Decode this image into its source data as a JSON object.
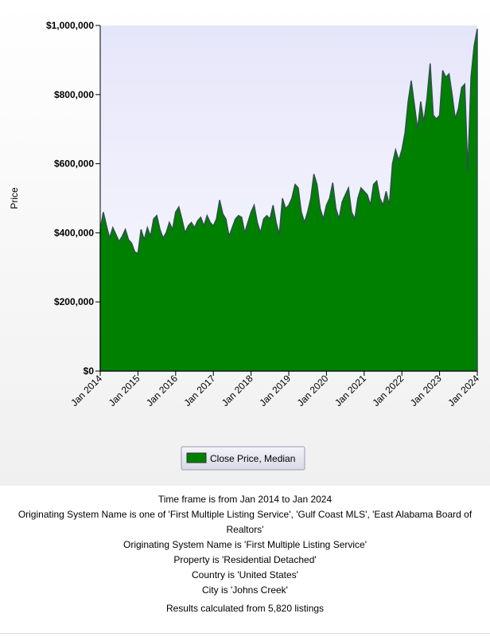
{
  "chart_data": {
    "type": "area",
    "y_label": "Price",
    "x": [
      "2014-01",
      "2014-02",
      "2014-03",
      "2014-04",
      "2014-05",
      "2014-06",
      "2014-07",
      "2014-08",
      "2014-09",
      "2014-10",
      "2014-11",
      "2014-12",
      "2015-01",
      "2015-02",
      "2015-03",
      "2015-04",
      "2015-05",
      "2015-06",
      "2015-07",
      "2015-08",
      "2015-09",
      "2015-10",
      "2015-11",
      "2015-12",
      "2016-01",
      "2016-02",
      "2016-03",
      "2016-04",
      "2016-05",
      "2016-06",
      "2016-07",
      "2016-08",
      "2016-09",
      "2016-10",
      "2016-11",
      "2016-12",
      "2017-01",
      "2017-02",
      "2017-03",
      "2017-04",
      "2017-05",
      "2017-06",
      "2017-07",
      "2017-08",
      "2017-09",
      "2017-10",
      "2017-11",
      "2017-12",
      "2018-01",
      "2018-02",
      "2018-03",
      "2018-04",
      "2018-05",
      "2018-06",
      "2018-07",
      "2018-08",
      "2018-09",
      "2018-10",
      "2018-11",
      "2018-12",
      "2019-01",
      "2019-02",
      "2019-03",
      "2019-04",
      "2019-05",
      "2019-06",
      "2019-07",
      "2019-08",
      "2019-09",
      "2019-10",
      "2019-11",
      "2019-12",
      "2020-01",
      "2020-02",
      "2020-03",
      "2020-04",
      "2020-05",
      "2020-06",
      "2020-07",
      "2020-08",
      "2020-09",
      "2020-10",
      "2020-11",
      "2020-12",
      "2021-01",
      "2021-02",
      "2021-03",
      "2021-04",
      "2021-05",
      "2021-06",
      "2021-07",
      "2021-08",
      "2021-09",
      "2021-10",
      "2021-11",
      "2021-12",
      "2022-01",
      "2022-02",
      "2022-03",
      "2022-04",
      "2022-05",
      "2022-06",
      "2022-07",
      "2022-08",
      "2022-09",
      "2022-10",
      "2022-11",
      "2022-12",
      "2023-01",
      "2023-02",
      "2023-03",
      "2023-04",
      "2023-05",
      "2023-06",
      "2023-07",
      "2023-08",
      "2023-09",
      "2023-10",
      "2023-11",
      "2023-12",
      "2024-01"
    ],
    "series": [
      {
        "name": "Close Price, Median",
        "color": "#008000",
        "values": [
          410000,
          460000,
          420000,
          385000,
          415000,
          395000,
          375000,
          390000,
          410000,
          380000,
          370000,
          345000,
          340000,
          410000,
          380000,
          415000,
          390000,
          440000,
          450000,
          410000,
          385000,
          400000,
          430000,
          410000,
          460000,
          475000,
          440000,
          400000,
          420000,
          430000,
          415000,
          435000,
          445000,
          420000,
          450000,
          430000,
          420000,
          440000,
          495000,
          455000,
          440000,
          390000,
          415000,
          440000,
          450000,
          445000,
          400000,
          430000,
          460000,
          480000,
          430000,
          400000,
          440000,
          450000,
          440000,
          480000,
          430000,
          395000,
          500000,
          470000,
          480000,
          500000,
          540000,
          530000,
          460000,
          430000,
          460000,
          500000,
          570000,
          540000,
          470000,
          440000,
          480000,
          500000,
          545000,
          470000,
          440000,
          490000,
          510000,
          530000,
          460000,
          440000,
          500000,
          530000,
          520000,
          510000,
          480000,
          540000,
          550000,
          500000,
          480000,
          520000,
          480000,
          600000,
          640000,
          610000,
          640000,
          690000,
          780000,
          840000,
          770000,
          700000,
          780000,
          720000,
          790000,
          890000,
          740000,
          730000,
          740000,
          870000,
          850000,
          860000,
          800000,
          730000,
          760000,
          820000,
          830000,
          580000,
          850000,
          940000,
          990000
        ]
      }
    ],
    "xlim": [
      "2014-01",
      "2024-01"
    ],
    "xticks": [
      {
        "value": "2014-01",
        "label": "Jan 2014"
      },
      {
        "value": "2015-01",
        "label": "Jan 2015"
      },
      {
        "value": "2016-01",
        "label": "Jan 2016"
      },
      {
        "value": "2017-01",
        "label": "Jan 2017"
      },
      {
        "value": "2018-01",
        "label": "Jan 2018"
      },
      {
        "value": "2019-01",
        "label": "Jan 2019"
      },
      {
        "value": "2020-01",
        "label": "Jan 2020"
      },
      {
        "value": "2021-01",
        "label": "Jan 2021"
      },
      {
        "value": "2022-01",
        "label": "Jan 2022"
      },
      {
        "value": "2023-01",
        "label": "Jan 2023"
      },
      {
        "value": "2024-01",
        "label": "Jan 2024"
      }
    ],
    "ylim": [
      0,
      1000000
    ],
    "yticks": [
      {
        "value": 0,
        "label": "$0"
      },
      {
        "value": 200000,
        "label": "$200,000"
      },
      {
        "value": 400000,
        "label": "$400,000"
      },
      {
        "value": 600000,
        "label": "$600,000"
      },
      {
        "value": 800000,
        "label": "$800,000"
      },
      {
        "value": 1000000,
        "label": "$1,000,000"
      }
    ],
    "notes": [
      "Time frame is from Jan 2014 to Jan 2024",
      "Originating System Name is one of 'First Multiple Listing Service', 'Gulf Coast MLS', 'East Alabama Board of Realtors'",
      "Originating System Name is 'First Multiple Listing Service'",
      "Property is 'Residential Detached'",
      "Country is 'United States'",
      "City is 'Johns Creek'",
      "Results calculated from 5,820 listings"
    ]
  }
}
